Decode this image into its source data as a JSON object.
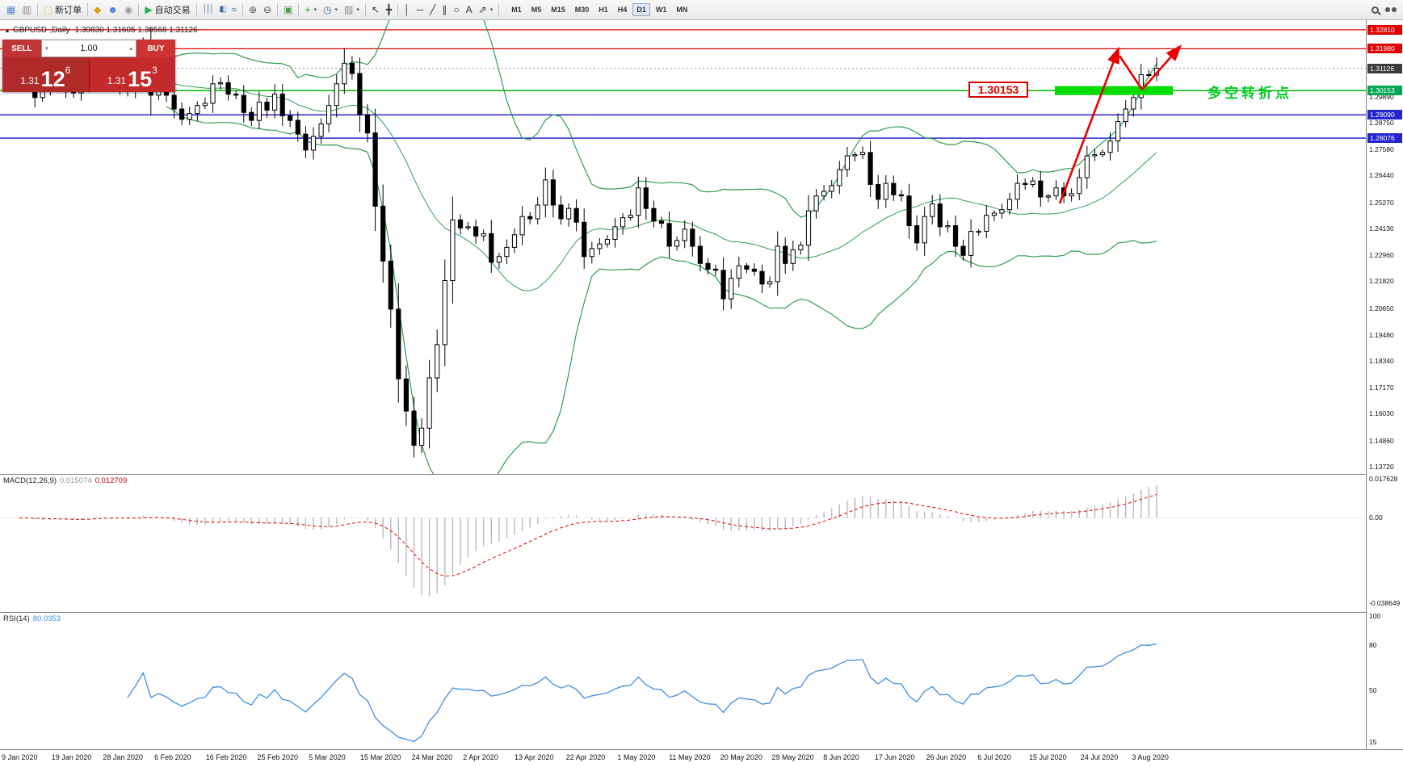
{
  "window": {
    "title_marker": "▲",
    "chart_title": "GBPUSD-,Daily",
    "ohlc": "1.30830 1.31605 1.30568 1.31126"
  },
  "toolbar": {
    "items": [
      {
        "name": "chart-window-icon",
        "glyph": "▦",
        "color": "#5b87c5"
      },
      {
        "name": "profile-icon",
        "glyph": "▥",
        "color": "#8a8a8a"
      },
      {
        "sep": true
      },
      {
        "name": "new-order-button",
        "glyph": "▢",
        "color": "#e9bb5a",
        "label": "新订单"
      },
      {
        "sep": true
      },
      {
        "name": "mql5-icon",
        "glyph": "◆",
        "color": "#d4a017"
      },
      {
        "name": "community-icon",
        "glyph": "☻",
        "color": "#4a7fd4"
      },
      {
        "name": "virtual-hosting-icon",
        "glyph": "◉",
        "color": "#9a9a9a"
      },
      {
        "sep": true
      },
      {
        "name": "auto-trading-button",
        "glyph": "▶",
        "color": "#2bb24c",
        "label": "自动交易"
      },
      {
        "sep": true
      },
      {
        "name": "bar-chart-icon",
        "glyph": "│││",
        "color": "#3a6ea5",
        "narrow": true
      },
      {
        "name": "candlestick-chart-icon",
        "glyph": "▮▯",
        "color": "#3a6ea5",
        "narrow": true
      },
      {
        "name": "line-chart-icon",
        "glyph": "≈",
        "color": "#3a6ea5"
      },
      {
        "sep": true
      },
      {
        "name": "zoom-in-icon",
        "glyph": "⊕",
        "color": "#555555"
      },
      {
        "name": "zoom-out-icon",
        "glyph": "⊖",
        "color": "#555555"
      },
      {
        "sep": true
      },
      {
        "name": "tile-windows-icon",
        "glyph": "▣",
        "color": "#4f9e4f"
      },
      {
        "sep": true
      },
      {
        "name": "indicators-button",
        "glyph": "+",
        "color": "#1faa1f",
        "caret": true
      },
      {
        "name": "periods-button",
        "glyph": "◷",
        "color": "#3a6ea5",
        "caret": true
      },
      {
        "name": "templates-button",
        "glyph": "▨",
        "color": "#888888",
        "caret": true
      },
      {
        "sep": true
      },
      {
        "name": "cursor-icon",
        "glyph": "↖",
        "color": "#333333"
      },
      {
        "name": "crosshair-icon",
        "glyph": "╋",
        "color": "#333333"
      },
      {
        "sep": true
      },
      {
        "name": "vertical-line-icon",
        "glyph": "│",
        "color": "#333333"
      },
      {
        "name": "horizontal-line-icon",
        "glyph": "─",
        "color": "#333333"
      },
      {
        "name": "trendline-icon",
        "glyph": "╱",
        "color": "#333333"
      },
      {
        "name": "channel-icon",
        "glyph": "∥",
        "color": "#333333"
      },
      {
        "name": "shapes-icon",
        "glyph": "○",
        "color": "#333333"
      },
      {
        "name": "text-icon",
        "glyph": "A",
        "color": "#333333"
      },
      {
        "name": "arrow-tools-icon",
        "glyph": "⇗",
        "color": "#333333",
        "caret": true
      },
      {
        "sep": true
      }
    ],
    "timeframes": [
      "M1",
      "M5",
      "M15",
      "M30",
      "H1",
      "H4",
      "D1",
      "W1",
      "MN"
    ],
    "active_timeframe": "D1"
  },
  "trade_panel": {
    "sell_label": "SELL",
    "buy_label": "BUY",
    "volume": "1.00",
    "sell_price_prefix": "1.31",
    "sell_price_main": "12",
    "sell_price_sup": "6",
    "buy_price_prefix": "1.31",
    "buy_price_main": "15",
    "buy_price_sup": "3"
  },
  "annotations": {
    "level_box": "1.30153",
    "turning_point": "多空转折点"
  },
  "indicators": {
    "macd": {
      "label": "MACD(12,26,9)",
      "main_value": "0.015074",
      "signal_value": "0.012709",
      "axis_top": "0.017628",
      "axis_zero": "0.00",
      "axis_bottom": "-0.038649"
    },
    "rsi": {
      "label": "RSI(14)",
      "value": "80.0353",
      "axis": [
        "100",
        "80",
        "50",
        "15"
      ]
    }
  },
  "price_axis": {
    "badges": [
      {
        "text": "1.32810",
        "price": 1.3281,
        "color": "#e00000"
      },
      {
        "text": "1.31980",
        "price": 1.3198,
        "color": "#e00000"
      },
      {
        "text": "1.31126",
        "price": 1.31126,
        "color": "#3c3c3c"
      },
      {
        "text": "1.30153",
        "price": 1.30153,
        "color": "#00a651"
      },
      {
        "text": "1.29090",
        "price": 1.2909,
        "color": "#2525d0"
      },
      {
        "text": "1.28076",
        "price": 1.28076,
        "color": "#2525d0"
      }
    ],
    "ticks": [
      {
        "text": "1.29890",
        "price": 1.2989
      },
      {
        "text": "1.28750",
        "price": 1.2875
      },
      {
        "text": "1.27580",
        "price": 1.2758
      },
      {
        "text": "1.26440",
        "price": 1.2644
      },
      {
        "text": "1.25270",
        "price": 1.2527
      },
      {
        "text": "1.24130",
        "price": 1.2413
      },
      {
        "text": "1.22960",
        "price": 1.2296
      },
      {
        "text": "1.21820",
        "price": 1.2182
      },
      {
        "text": "1.20650",
        "price": 1.2065
      },
      {
        "text": "1.19480",
        "price": 1.1948
      },
      {
        "text": "1.18340",
        "price": 1.1834
      },
      {
        "text": "1.17170",
        "price": 1.1717
      },
      {
        "text": "1.16030",
        "price": 1.1603
      },
      {
        "text": "1.14860",
        "price": 1.1486
      },
      {
        "text": "1.13720",
        "price": 1.1372
      }
    ]
  },
  "timeline": [
    "9 Jan 2020",
    "19 Jan 2020",
    "28 Jan 2020",
    "6 Feb 2020",
    "16 Feb 2020",
    "25 Feb 2020",
    "5 Mar 2020",
    "15 Mar 2020",
    "24 Mar 2020",
    "2 Apr 2020",
    "13 Apr 2020",
    "22 Apr 2020",
    "1 May 2020",
    "11 May 2020",
    "20 May 2020",
    "29 May 2020",
    "8 Jun 2020",
    "17 Jun 2020",
    "26 Jun 2020",
    "6 Jul 2020",
    "15 Jul 2020",
    "24 Jul 2020",
    "3 Aug 2020"
  ],
  "chart_data": {
    "type": "candlestick",
    "symbol": "GBPUSD",
    "period": "Daily",
    "price_range": [
      1.134,
      1.3323
    ],
    "last_ohlc": {
      "open": 1.3083,
      "high": 1.31605,
      "low": 1.30568,
      "close": 1.31126
    },
    "session_low": 1.1412,
    "closes": [
      1.3065,
      1.306,
      1.2985,
      1.302,
      1.304,
      1.3075,
      1.301,
      1.3005,
      1.3045,
      1.314,
      1.312,
      1.307,
      1.3055,
      1.3025,
      1.3015,
      1.309,
      1.3205,
      1.2995,
      1.303,
      1.2995,
      1.2935,
      1.289,
      1.2915,
      1.295,
      1.296,
      1.3045,
      1.305,
      1.3,
      1.2995,
      1.292,
      1.2885,
      1.2965,
      1.293,
      1.3,
      1.2905,
      1.2885,
      1.2825,
      1.2755,
      1.2815,
      1.287,
      1.295,
      1.3045,
      1.3135,
      1.309,
      1.291,
      1.283,
      1.251,
      1.227,
      1.206,
      1.1755,
      1.1615,
      1.1465,
      1.154,
      1.176,
      1.1905,
      1.2185,
      1.245,
      1.2415,
      1.242,
      1.238,
      1.239,
      1.2265,
      1.229,
      1.233,
      1.2385,
      1.2465,
      1.2455,
      1.2515,
      1.2625,
      1.2515,
      1.2455,
      1.25,
      1.244,
      1.229,
      1.2325,
      1.2345,
      1.2365,
      1.242,
      1.246,
      1.247,
      1.259,
      1.25,
      1.2445,
      1.2435,
      1.2335,
      1.236,
      1.241,
      1.2335,
      1.226,
      1.2235,
      1.223,
      1.2105,
      1.2195,
      1.225,
      1.2235,
      1.2225,
      1.217,
      1.218,
      1.2335,
      1.226,
      1.232,
      1.234,
      1.249,
      1.2555,
      1.2575,
      1.26,
      1.267,
      1.273,
      1.2735,
      1.2745,
      1.2605,
      1.254,
      1.261,
      1.256,
      1.2555,
      1.2425,
      1.235,
      1.2465,
      1.252,
      1.242,
      1.2425,
      1.2335,
      1.2295,
      1.24,
      1.24,
      1.247,
      1.248,
      1.2495,
      1.254,
      1.261,
      1.2605,
      1.262,
      1.255,
      1.2555,
      1.259,
      1.2555,
      1.2565,
      1.2635,
      1.273,
      1.2735,
      1.2745,
      1.2795,
      1.288,
      1.2935,
      1.2985,
      1.3085,
      1.3083,
      1.31126
    ],
    "hlines": [
      {
        "price": 1.3281,
        "color": "#e00000",
        "width": 1.2,
        "style": "solid"
      },
      {
        "price": 1.3198,
        "color": "#e00000",
        "width": 1.2,
        "style": "solid"
      },
      {
        "price": 1.31126,
        "color": "#909090",
        "width": 1,
        "style": "dotted"
      },
      {
        "price": 1.30153,
        "color": "#00bb00",
        "width": 1.5,
        "style": "solid"
      },
      {
        "price": 1.2909,
        "color": "#2525d0",
        "width": 1.5,
        "style": "solid"
      },
      {
        "price": 1.28076,
        "color": "#2525d0",
        "width": 1.5,
        "style": "solid"
      }
    ],
    "overlays": {
      "bollinger_period": 20,
      "bollinger_deviation": 2,
      "bollinger_color": "#2f9e4f"
    },
    "macd_params": [
      12,
      26,
      9
    ],
    "rsi_params": 14,
    "colors": {
      "bull": "#ffffff",
      "bear": "#000000",
      "outline": "#000000",
      "macd_hist": "#b9b9b9",
      "macd_signal": "#e00000",
      "rsi_line": "#3f8fde",
      "arrow": "#e80000",
      "support_zone": "#00dd00"
    }
  }
}
